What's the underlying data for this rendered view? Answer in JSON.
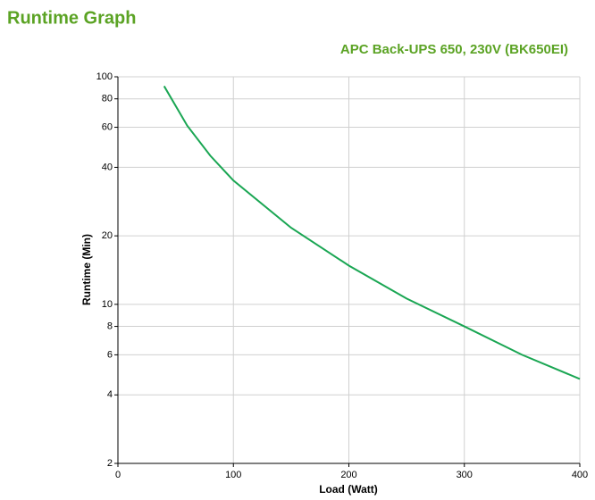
{
  "title": "Runtime Graph",
  "chart_data": {
    "type": "line",
    "title": "APC Back-UPS 650, 230V (BK650EI)",
    "x_label": "Load (Watt)",
    "y_label": "Runtime (Min)",
    "x": [
      40,
      60,
      80,
      100,
      150,
      200,
      250,
      300,
      350,
      400
    ],
    "series": [
      {
        "name": "BK650EI",
        "color": "#1aa653",
        "values": [
          91,
          61,
          45,
          35,
          21.7,
          14.8,
          10.6,
          8,
          6,
          4.7
        ]
      }
    ],
    "xlim": [
      0,
      400
    ],
    "xticks": [
      0,
      100,
      200,
      300,
      400
    ],
    "ylim": [
      2,
      100
    ],
    "yticks": [
      2,
      4,
      6,
      8,
      10,
      20,
      40,
      60,
      80,
      100
    ],
    "yscale": "log",
    "grid": true
  }
}
